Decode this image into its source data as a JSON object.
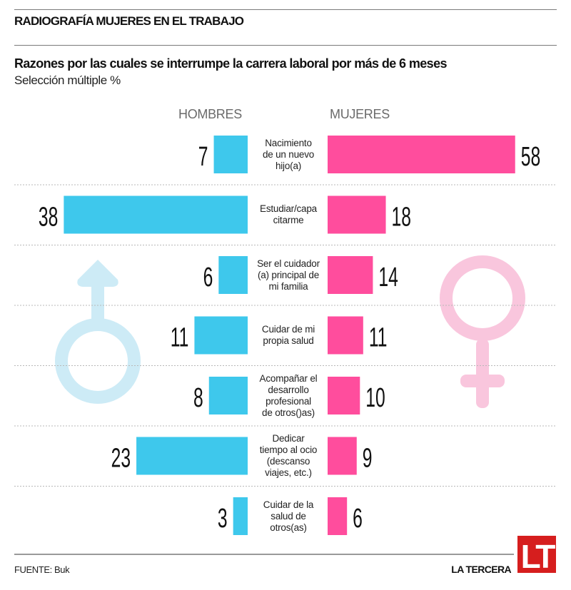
{
  "header": {
    "kicker": "RADIOGRAFÍA MUJERES EN EL TRABAJO",
    "title": "Razones por las cuales se interrumpe la carrera laboral por más de 6 meses",
    "subtitle": "Selección múltiple %"
  },
  "colors": {
    "men": "#3EC8EC",
    "women": "#FF4D9D",
    "men_symbol": "#CDEBF6",
    "women_symbol": "#F9C6DD",
    "logo": "#D61E1E"
  },
  "icons": {
    "men_symbol": "male-symbol-icon",
    "women_symbol": "female-symbol-icon"
  },
  "chart_data": {
    "type": "bar",
    "orientation": "horizontal-diverging",
    "title": "Razones por las cuales se interrumpe la carrera laboral por más de 6 meses",
    "subtitle": "Selección múltiple %",
    "unit": "%",
    "categories": [
      "Nacimiento de un nuevo hijo(a)",
      "Estudiar/capacitarme",
      "Ser el cuidador (a) principal de mi familia",
      "Cuidar de mi propia salud",
      "Acompañar el desarrollo profesional de otros()as)",
      "Dedicar tiempo al ocio (descanso viajes, etc.)",
      "Cuidar de la salud de otros(as)"
    ],
    "category_lines": [
      [
        "Nacimiento",
        "de un nuevo",
        "hijo(a)"
      ],
      [
        "Estudiar/capa",
        "citarme"
      ],
      [
        "Ser el cuidador",
        "(a) principal de",
        "mi familia"
      ],
      [
        "Cuidar de mi",
        "propia salud"
      ],
      [
        "Acompañar el",
        "desarrollo",
        "profesional",
        "de otros()as)"
      ],
      [
        "Dedicar",
        "tiempo al ocio",
        "(descanso",
        "viajes, etc.)"
      ],
      [
        "Cuidar de la",
        "salud de",
        "otros(as)"
      ]
    ],
    "series": [
      {
        "name": "HOMBRES",
        "side": "left",
        "values": [
          7,
          38,
          6,
          11,
          8,
          23,
          3
        ]
      },
      {
        "name": "MUJERES",
        "side": "right",
        "values": [
          58,
          18,
          14,
          11,
          10,
          9,
          6
        ]
      }
    ],
    "legend": "top",
    "grid": false
  },
  "footer": {
    "source": "FUENTE: Buk",
    "brand": "LA TERCERA",
    "logo_text": "LT"
  }
}
